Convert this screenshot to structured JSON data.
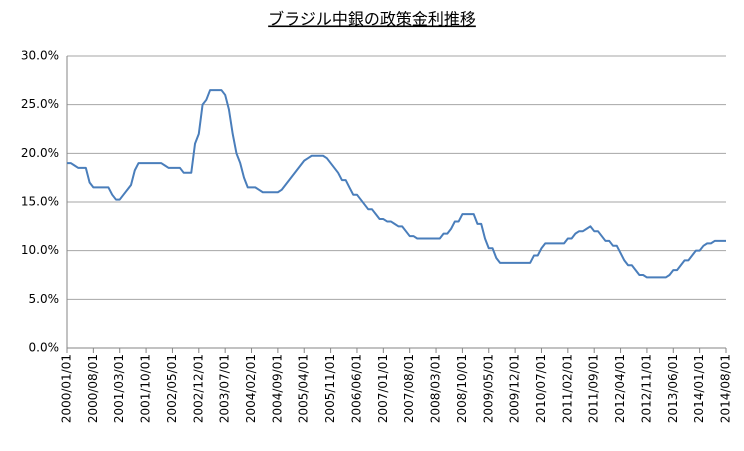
{
  "chart_data": {
    "type": "line",
    "title": "ブラジル中銀の政策金利推移",
    "categories": [
      "2000/01/01",
      null,
      null,
      null,
      null,
      null,
      null,
      "2000/08/01",
      null,
      null,
      null,
      null,
      null,
      null,
      "2001/03/01",
      null,
      null,
      null,
      null,
      null,
      null,
      "2001/10/01",
      null,
      null,
      null,
      null,
      null,
      null,
      "2002/05/01",
      null,
      null,
      null,
      null,
      null,
      null,
      "2002/12/01",
      null,
      null,
      null,
      null,
      null,
      null,
      "2003/07/01",
      null,
      null,
      null,
      null,
      null,
      null,
      "2004/02/01",
      null,
      null,
      null,
      null,
      null,
      null,
      "2004/09/01",
      null,
      null,
      null,
      null,
      null,
      null,
      "2005/04/01",
      null,
      null,
      null,
      null,
      null,
      null,
      "2005/11/01",
      null,
      null,
      null,
      null,
      null,
      null,
      "2006/06/01",
      null,
      null,
      null,
      null,
      null,
      null,
      "2007/01/01",
      null,
      null,
      null,
      null,
      null,
      null,
      "2007/08/01",
      null,
      null,
      null,
      null,
      null,
      null,
      "2008/03/01",
      null,
      null,
      null,
      null,
      null,
      null,
      "2008/10/01",
      null,
      null,
      null,
      null,
      null,
      null,
      "2009/05/01",
      null,
      null,
      null,
      null,
      null,
      null,
      "2009/12/01",
      null,
      null,
      null,
      null,
      null,
      null,
      "2010/07/01",
      null,
      null,
      null,
      null,
      null,
      null,
      "2011/02/01",
      null,
      null,
      null,
      null,
      null,
      null,
      "2011/09/01",
      null,
      null,
      null,
      null,
      null,
      null,
      "2012/04/01",
      null,
      null,
      null,
      null,
      null,
      null,
      "2012/11/01",
      null,
      null,
      null,
      null,
      null,
      null,
      "2013/06/01",
      null,
      null,
      null,
      null,
      null,
      null,
      "2014/01/01",
      null,
      null,
      null,
      null,
      null,
      null,
      "2014/08/01"
    ],
    "values": [
      19,
      19,
      18.75,
      18.5,
      18.5,
      18.5,
      17,
      16.5,
      16.5,
      16.5,
      16.5,
      16.5,
      15.75,
      15.25,
      15.25,
      15.75,
      16.25,
      16.75,
      18.25,
      19,
      19,
      19,
      19,
      19,
      19,
      19,
      18.75,
      18.5,
      18.5,
      18.5,
      18.5,
      18,
      18,
      18,
      21,
      22,
      25,
      25.5,
      26.5,
      26.5,
      26.5,
      26.5,
      26,
      24.5,
      22,
      20,
      19,
      17.5,
      16.5,
      16.5,
      16.5,
      16.25,
      16,
      16,
      16,
      16,
      16,
      16.25,
      16.75,
      17.25,
      17.75,
      18.25,
      18.75,
      19.25,
      19.5,
      19.75,
      19.75,
      19.75,
      19.75,
      19.5,
      19,
      18.5,
      18,
      17.25,
      17.25,
      16.5,
      15.75,
      15.75,
      15.25,
      14.75,
      14.25,
      14.25,
      13.75,
      13.25,
      13.25,
      13,
      13,
      12.75,
      12.5,
      12.5,
      12,
      11.5,
      11.5,
      11.25,
      11.25,
      11.25,
      11.25,
      11.25,
      11.25,
      11.25,
      11.75,
      11.75,
      12.25,
      13,
      13,
      13.75,
      13.75,
      13.75,
      13.75,
      12.75,
      12.75,
      11.25,
      10.25,
      10.25,
      9.25,
      8.75,
      8.75,
      8.75,
      8.75,
      8.75,
      8.75,
      8.75,
      8.75,
      8.75,
      9.5,
      9.5,
      10.25,
      10.75,
      10.75,
      10.75,
      10.75,
      10.75,
      10.75,
      11.25,
      11.25,
      11.75,
      12,
      12,
      12.25,
      12.5,
      12,
      12,
      11.5,
      11,
      11,
      10.5,
      10.5,
      9.75,
      9,
      8.5,
      8.5,
      8,
      7.5,
      7.5,
      7.25,
      7.25,
      7.25,
      7.25,
      7.25,
      7.25,
      7.5,
      8,
      8,
      8.5,
      9,
      9,
      9.5,
      10,
      10,
      10.5,
      10.75,
      10.75,
      11,
      11,
      11,
      11
    ],
    "color": "#4a7ebb",
    "ylim": [
      0,
      30
    ],
    "yticks": [
      {
        "value": 0,
        "label": "0.0%"
      },
      {
        "value": 5,
        "label": "5.0%"
      },
      {
        "value": 10,
        "label": "10.0%"
      },
      {
        "value": 15,
        "label": "15.0%"
      },
      {
        "value": 20,
        "label": "20.0%"
      },
      {
        "value": 25,
        "label": "25.0%"
      },
      {
        "value": 30,
        "label": "30.0%"
      }
    ],
    "grid": true
  }
}
